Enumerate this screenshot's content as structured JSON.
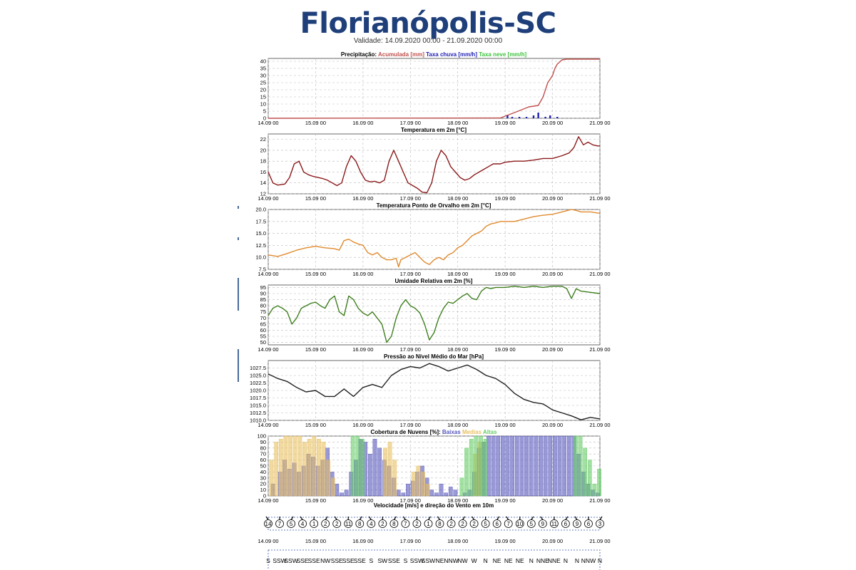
{
  "page": {
    "title": "Florianópolis-SC",
    "validity": "Validade: 14.09.2020 00:00 - 21.09.2020 00:00"
  },
  "x_ticks": [
    "14.09 00",
    "15.09 00",
    "16.09 00",
    "17.09 00",
    "18.09 00",
    "19.09 00",
    "20.09 00",
    "21.09 00"
  ],
  "colors": {
    "accumulated": "#c0504d",
    "rain_rate": "#1f1fb4",
    "snow_rate": "#3cc43c",
    "temperature": "#8b1a1a",
    "dewpoint": "#e08a2e",
    "humidity": "#3f7f1f",
    "pressure": "#222222",
    "cloud_low": "#5555bb",
    "cloud_mid": "#e8c060",
    "cloud_high": "#66cc66",
    "title": "#1f3f7a"
  },
  "chart_data": [
    {
      "type": "line",
      "title_parts": [
        {
          "text": "Precipitação: ",
          "color": "#000000"
        },
        {
          "text": "Acumulada [mm] ",
          "color": "#c0504d"
        },
        {
          "text": "Taxa chuva [mm/h] ",
          "color": "#1f1fb4"
        },
        {
          "text": "Taxa neve [mm/h]",
          "color": "#3cc43c"
        }
      ],
      "ylim": [
        0,
        42
      ],
      "yticks": [
        "0",
        "5",
        "10",
        "15",
        "20",
        "25",
        "30",
        "35",
        "40"
      ],
      "ytick_values": [
        0,
        5,
        10,
        15,
        20,
        25,
        30,
        35,
        40
      ],
      "series": [
        {
          "name": "Acumulada [mm]",
          "color": "#c0504d",
          "x": [
            0,
            4.9,
            5.0,
            5.2,
            5.5,
            5.7,
            5.8,
            5.9,
            6.0,
            6.05,
            6.1,
            6.2,
            6.3,
            6.5,
            7.0
          ],
          "y": [
            0,
            0.2,
            1.5,
            4,
            8,
            9,
            15,
            25,
            30,
            35,
            38,
            41,
            41.5,
            41.5,
            41.5
          ]
        },
        {
          "name": "Taxa chuva [mm/h]",
          "color": "#1f1fb4",
          "bars": true,
          "x": [
            5.05,
            5.15,
            5.3,
            5.45,
            5.6,
            5.7,
            5.85,
            5.95,
            6.1
          ],
          "y": [
            2,
            1,
            1,
            1,
            2,
            4,
            1,
            2,
            1
          ]
        }
      ]
    },
    {
      "type": "line",
      "title": "Temperatura em 2m [°C]",
      "ylim": [
        12,
        23
      ],
      "yticks": [
        "12",
        "14",
        "16",
        "18",
        "20",
        "22"
      ],
      "ytick_values": [
        12,
        14,
        16,
        18,
        20,
        22
      ],
      "series": [
        {
          "name": "Temperatura em 2m [°C]",
          "color": "#8b1a1a",
          "x": [
            0,
            0.1,
            0.2,
            0.35,
            0.45,
            0.55,
            0.65,
            0.75,
            0.85,
            0.95,
            1.05,
            1.15,
            1.25,
            1.35,
            1.45,
            1.55,
            1.65,
            1.75,
            1.85,
            1.95,
            2.05,
            2.15,
            2.25,
            2.35,
            2.45,
            2.55,
            2.65,
            2.75,
            2.85,
            2.95,
            3.05,
            3.15,
            3.25,
            3.35,
            3.45,
            3.55,
            3.65,
            3.75,
            3.85,
            3.95,
            4.05,
            4.15,
            4.25,
            4.35,
            4.45,
            4.55,
            4.65,
            4.75,
            4.9,
            5.0,
            5.2,
            5.4,
            5.6,
            5.8,
            6.0,
            6.2,
            6.35,
            6.45,
            6.55,
            6.65,
            6.75,
            6.85,
            6.95,
            7.0
          ],
          "y": [
            16,
            14,
            13.6,
            13.8,
            15,
            17.5,
            18,
            16,
            15.5,
            15.2,
            15,
            14.8,
            14.5,
            14,
            13.5,
            14,
            17,
            19,
            18,
            16,
            14.5,
            14.2,
            14.3,
            14,
            14.5,
            18,
            20,
            18,
            16,
            14,
            13.5,
            13,
            12.3,
            12.2,
            14,
            18,
            20,
            19,
            17,
            16,
            15,
            14.5,
            14.8,
            15.5,
            16,
            16.5,
            17,
            17.5,
            17.5,
            17.8,
            18,
            18,
            18.2,
            18.5,
            18.5,
            19,
            19.5,
            20.5,
            22.5,
            21,
            21.5,
            21,
            20.8,
            20.8
          ]
        }
      ]
    },
    {
      "type": "line",
      "title": "Temperatura Ponto de Orvalho em 2m [°C]",
      "ylim": [
        7.5,
        20
      ],
      "yticks": [
        "7.5",
        "10.0",
        "12.5",
        "15.0",
        "17.5",
        "20.0"
      ],
      "ytick_values": [
        7.5,
        10,
        12.5,
        15,
        17.5,
        20
      ],
      "series": [
        {
          "name": "Temperatura Ponto de Orvalho em 2m [°C]",
          "color": "#e08a2e",
          "x": [
            0,
            0.2,
            0.4,
            0.6,
            0.8,
            1.0,
            1.2,
            1.4,
            1.5,
            1.6,
            1.7,
            1.8,
            1.9,
            2.0,
            2.1,
            2.2,
            2.3,
            2.4,
            2.5,
            2.6,
            2.7,
            2.75,
            2.8,
            2.9,
            3.0,
            3.1,
            3.2,
            3.3,
            3.4,
            3.5,
            3.6,
            3.7,
            3.8,
            3.9,
            4.0,
            4.1,
            4.2,
            4.3,
            4.4,
            4.5,
            4.6,
            4.7,
            4.8,
            4.9,
            5.0,
            5.2,
            5.4,
            5.6,
            5.8,
            6.0,
            6.2,
            6.4,
            6.5,
            6.6,
            6.8,
            7.0
          ],
          "y": [
            10.5,
            10.2,
            10.8,
            11.5,
            12,
            12.3,
            12,
            11.8,
            11.5,
            13.5,
            13.8,
            13.2,
            12.8,
            12.5,
            11,
            10.5,
            11,
            10,
            9.5,
            9.5,
            9.8,
            8,
            9.5,
            10,
            10.5,
            11,
            10,
            9,
            8.5,
            9.5,
            10,
            9.5,
            10.5,
            11,
            12,
            12.5,
            13.5,
            14.5,
            15,
            15.5,
            16.5,
            17,
            17.2,
            17.5,
            17.5,
            17.5,
            18,
            18.5,
            18.8,
            19,
            19.5,
            20,
            19.8,
            19.5,
            19.5,
            19.2
          ]
        }
      ]
    },
    {
      "type": "line",
      "title": "Umidade Relativa em 2m [%]",
      "ylim": [
        48,
        97
      ],
      "yticks": [
        "50",
        "55",
        "60",
        "65",
        "70",
        "75",
        "80",
        "85",
        "90",
        "95"
      ],
      "ytick_values": [
        50,
        55,
        60,
        65,
        70,
        75,
        80,
        85,
        90,
        95
      ],
      "series": [
        {
          "name": "Umidade Relativa em 2m [%]",
          "color": "#3f7f1f",
          "x": [
            0,
            0.1,
            0.2,
            0.3,
            0.4,
            0.5,
            0.6,
            0.7,
            0.8,
            0.9,
            1.0,
            1.1,
            1.2,
            1.3,
            1.4,
            1.5,
            1.6,
            1.7,
            1.8,
            1.9,
            2.0,
            2.1,
            2.2,
            2.3,
            2.4,
            2.5,
            2.6,
            2.7,
            2.8,
            2.9,
            3.0,
            3.1,
            3.2,
            3.3,
            3.4,
            3.5,
            3.6,
            3.7,
            3.8,
            3.9,
            4.0,
            4.1,
            4.2,
            4.3,
            4.4,
            4.5,
            4.6,
            4.7,
            4.8,
            5.0,
            5.2,
            5.4,
            5.6,
            5.8,
            6.0,
            6.2,
            6.3,
            6.4,
            6.5,
            6.6,
            6.8,
            7.0
          ],
          "y": [
            72,
            78,
            80,
            78,
            75,
            65,
            70,
            78,
            80,
            82,
            83,
            80,
            78,
            85,
            88,
            75,
            72,
            88,
            85,
            78,
            74,
            72,
            75,
            70,
            65,
            50,
            55,
            70,
            80,
            85,
            80,
            78,
            74,
            65,
            52,
            58,
            70,
            78,
            83,
            82,
            85,
            88,
            90,
            86,
            85,
            92,
            95,
            94,
            95,
            95,
            96,
            95,
            96,
            95,
            96,
            96,
            94,
            86,
            94,
            92,
            91,
            90
          ]
        }
      ]
    },
    {
      "type": "line",
      "title": "Pressão ao Nível Médio do Mar [hPa]",
      "ylim": [
        1010,
        1030
      ],
      "yticks": [
        "1010.0",
        "1012.5",
        "1015.0",
        "1017.5",
        "1020.0",
        "1022.5",
        "1025.0",
        "1027.5"
      ],
      "ytick_values": [
        1010,
        1012.5,
        1015,
        1017.5,
        1020,
        1022.5,
        1025,
        1027.5
      ],
      "series": [
        {
          "name": "Pressão ao Nível Médio do Mar [hPa]",
          "color": "#222222",
          "x": [
            0,
            0.2,
            0.4,
            0.6,
            0.8,
            1.0,
            1.2,
            1.4,
            1.6,
            1.8,
            2.0,
            2.2,
            2.4,
            2.6,
            2.8,
            3.0,
            3.2,
            3.4,
            3.6,
            3.8,
            4.0,
            4.2,
            4.4,
            4.6,
            4.8,
            5.0,
            5.2,
            5.4,
            5.6,
            5.8,
            6.0,
            6.2,
            6.4,
            6.6,
            6.8,
            7.0
          ],
          "y": [
            1025.5,
            1024,
            1023,
            1021,
            1019.5,
            1020,
            1018,
            1018,
            1020.5,
            1018,
            1021,
            1022,
            1021,
            1025,
            1027,
            1028,
            1027.5,
            1029,
            1028,
            1026.5,
            1027.5,
            1028.5,
            1027,
            1025,
            1024,
            1022,
            1019,
            1017,
            1016,
            1015.5,
            1013.5,
            1012.5,
            1011.5,
            1010.2,
            1011,
            1010.5
          ]
        }
      ]
    },
    {
      "type": "bar",
      "title_parts": [
        {
          "text": "Cobertura de Nuvens [%]: ",
          "color": "#000000"
        },
        {
          "text": "Baixas ",
          "color": "#5555bb"
        },
        {
          "text": "Medias ",
          "color": "#e8c060"
        },
        {
          "text": "Altas",
          "color": "#66cc66"
        }
      ],
      "ylim": [
        0,
        100
      ],
      "yticks": [
        "0",
        "10",
        "20",
        "30",
        "40",
        "50",
        "60",
        "70",
        "80",
        "90",
        "100"
      ],
      "ytick_values": [
        0,
        10,
        20,
        30,
        40,
        50,
        60,
        70,
        80,
        90,
        100
      ],
      "series": [
        {
          "name": "Baixas",
          "color": "#5555bb",
          "x": [
            0.1,
            0.25,
            0.35,
            0.45,
            0.55,
            0.65,
            0.75,
            0.85,
            0.95,
            1.05,
            1.15,
            1.25,
            1.35,
            1.45,
            1.55,
            1.65,
            1.75,
            1.85,
            1.95,
            2.05,
            2.15,
            2.25,
            2.35,
            2.45,
            2.55,
            2.65,
            2.75,
            2.85,
            2.95,
            3.05,
            3.15,
            3.25,
            3.35,
            3.45,
            3.55,
            3.65,
            3.75,
            3.85,
            3.95,
            4.05,
            4.15,
            4.25,
            4.35,
            4.45,
            4.55,
            4.65,
            4.75,
            4.85,
            4.95,
            5.05,
            5.15,
            5.25,
            5.35,
            5.45,
            5.55,
            5.65,
            5.75,
            5.85,
            5.95,
            6.05,
            6.15,
            6.25,
            6.35,
            6.45,
            6.55,
            6.65,
            6.75,
            6.85,
            6.95
          ],
          "y": [
            20,
            40,
            60,
            45,
            55,
            40,
            50,
            70,
            65,
            50,
            60,
            80,
            40,
            20,
            5,
            10,
            40,
            60,
            95,
            90,
            70,
            95,
            80,
            60,
            50,
            30,
            10,
            5,
            20,
            25,
            40,
            50,
            30,
            10,
            5,
            20,
            5,
            15,
            10,
            0,
            5,
            10,
            40,
            80,
            90,
            100,
            100,
            100,
            100,
            100,
            100,
            100,
            100,
            100,
            100,
            100,
            100,
            100,
            100,
            100,
            100,
            100,
            100,
            100,
            70,
            40,
            20,
            10,
            5
          ]
        },
        {
          "name": "Medias",
          "color": "#e8c060",
          "x": [
            0.05,
            0.15,
            0.25,
            0.35,
            0.45,
            0.55,
            0.65,
            0.75,
            0.85,
            0.95,
            1.05,
            1.15,
            1.25,
            1.35,
            2.45,
            2.55,
            2.65,
            3.05,
            3.15,
            3.25,
            3.35,
            4.35,
            4.45
          ],
          "y": [
            60,
            90,
            95,
            100,
            100,
            100,
            100,
            90,
            95,
            100,
            95,
            90,
            60,
            30,
            80,
            90,
            60,
            40,
            50,
            40,
            20,
            70,
            90
          ]
        },
        {
          "name": "Altas",
          "color": "#66cc66",
          "x": [
            1.75,
            1.85,
            1.95,
            4.05,
            4.15,
            4.25,
            4.35,
            4.45,
            4.55,
            6.45,
            6.55,
            6.65,
            6.75,
            6.85,
            6.95
          ],
          "y": [
            100,
            100,
            95,
            30,
            80,
            95,
            100,
            100,
            95,
            100,
            100,
            80,
            60,
            20,
            45
          ]
        }
      ]
    },
    {
      "type": "table",
      "title": "Velocidade [m/s] e direção do Vento em 10m",
      "speeds": [
        "14",
        "7",
        "5",
        "4",
        "1",
        "2",
        "2",
        "11",
        "8",
        "4",
        "2",
        "8",
        "7",
        "2",
        "1",
        "8",
        "2",
        "2",
        "2",
        "5",
        "6",
        "7",
        "10",
        "5",
        "9",
        "11",
        "6",
        "9",
        "6",
        "3"
      ],
      "directions": [
        "S",
        "SSW",
        "SSW",
        "SSE",
        "SSE",
        "NW",
        "SSE",
        "SSE",
        "SSE",
        "S",
        "SW",
        "SSE",
        "S",
        "SSW",
        "SSW",
        "NE",
        "NNW",
        "NW",
        "W",
        "N",
        "NE",
        "NE",
        "NE",
        "N",
        "NNE",
        "NNE",
        "N",
        "N",
        "NNW",
        "N"
      ]
    }
  ]
}
